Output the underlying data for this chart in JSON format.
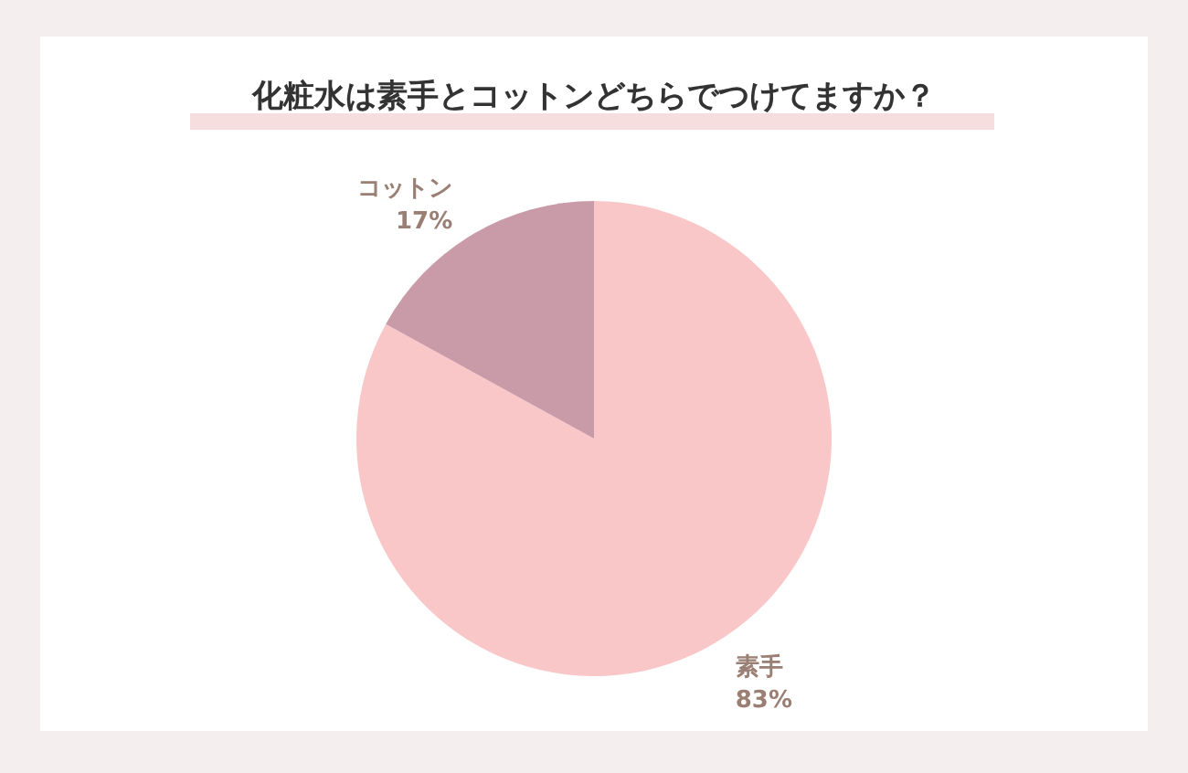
{
  "chart_data": {
    "type": "pie",
    "title": "化粧水は素手とコットンどちらでつけてますか？",
    "categories": [
      "素手",
      "コットン"
    ],
    "values": [
      83,
      17
    ],
    "colors": [
      "#f9c7c7",
      "#c99aa8"
    ],
    "value_labels": [
      "83%",
      "17%"
    ]
  }
}
